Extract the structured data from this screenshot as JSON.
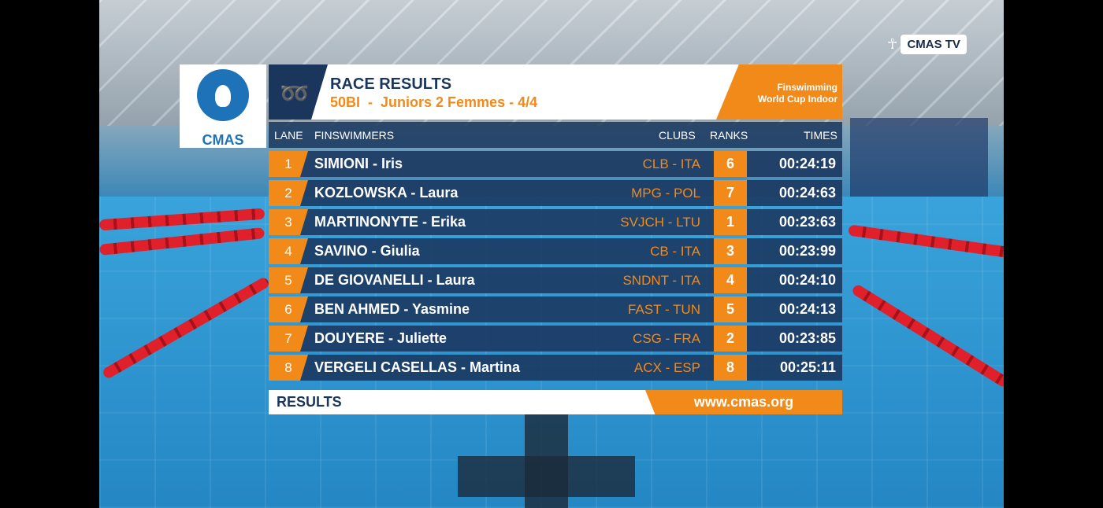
{
  "brand": {
    "tv_label": "CMAS TV",
    "logo_text": "CMAS"
  },
  "header": {
    "title": "RACE RESULTS",
    "subtitle": "50BI  -  Juniors 2 Femmes - 4/4",
    "event_line1": "Finswimming",
    "event_line2": "World Cup Indoor"
  },
  "columns": {
    "lane": "LANE",
    "swimmers": "FINSWIMMERS",
    "clubs": "CLUBS",
    "ranks": "RANKS",
    "times": "TIMES"
  },
  "rows": [
    {
      "lane": "1",
      "name": "SIMIONI - Iris",
      "club": "CLB - ITA",
      "rank": "6",
      "time": "00:24:19"
    },
    {
      "lane": "2",
      "name": "KOZLOWSKA - Laura",
      "club": "MPG - POL",
      "rank": "7",
      "time": "00:24:63"
    },
    {
      "lane": "3",
      "name": "MARTINONYTE - Erika",
      "club": "SVJCH - LTU",
      "rank": "1",
      "time": "00:23:63"
    },
    {
      "lane": "4",
      "name": "SAVINO - Giulia",
      "club": "CB - ITA",
      "rank": "3",
      "time": "00:23:99"
    },
    {
      "lane": "5",
      "name": "DE GIOVANELLI - Laura",
      "club": "SNDNT - ITA",
      "rank": "4",
      "time": "00:24:10"
    },
    {
      "lane": "6",
      "name": "BEN AHMED - Yasmine",
      "club": "FAST - TUN",
      "rank": "5",
      "time": "00:24:13"
    },
    {
      "lane": "7",
      "name": "DOUYERE - Juliette",
      "club": "CSG - FRA",
      "rank": "2",
      "time": "00:23:85"
    },
    {
      "lane": "8",
      "name": "VERGELI CASELLAS - Martina",
      "club": "ACX - ESP",
      "rank": "8",
      "time": "00:25:11"
    }
  ],
  "footer": {
    "label": "RESULTS",
    "url": "www.cmas.org"
  },
  "colors": {
    "navy": "#1a365d",
    "orange": "#f28a1a"
  }
}
